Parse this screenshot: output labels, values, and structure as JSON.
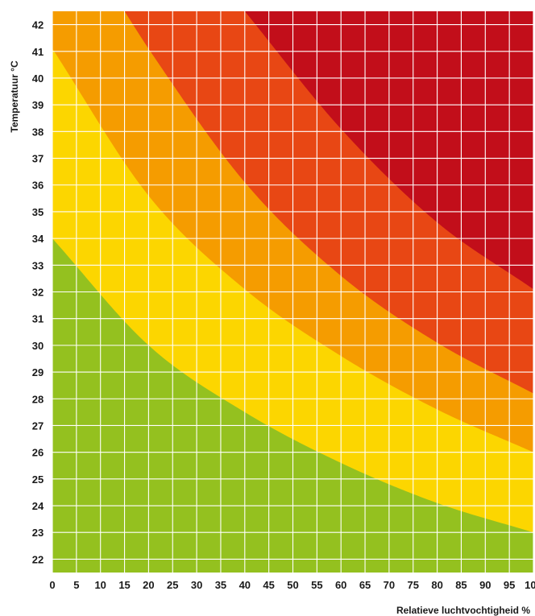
{
  "chart_data": {
    "type": "area",
    "title": "",
    "xlabel": "Relatieve luchtvochtigheid %",
    "ylabel": "Temperatuur  °C",
    "xlim": [
      0,
      100
    ],
    "ylim": [
      21.5,
      42.5
    ],
    "x_ticks": [
      0,
      5,
      10,
      15,
      20,
      25,
      30,
      35,
      40,
      45,
      50,
      55,
      60,
      65,
      70,
      75,
      80,
      85,
      90,
      95,
      100
    ],
    "y_ticks": [
      22,
      23,
      24,
      25,
      26,
      27,
      28,
      29,
      30,
      31,
      32,
      33,
      34,
      35,
      36,
      37,
      38,
      39,
      40,
      41,
      42
    ],
    "grid": true,
    "legend": "none",
    "zones": [
      {
        "color": "#94c11f",
        "upper_boundary": [
          [
            0,
            34.0
          ],
          [
            20,
            30.0
          ],
          [
            40,
            27.5
          ],
          [
            60,
            25.6
          ],
          [
            80,
            24.1
          ],
          [
            100,
            23.0
          ]
        ]
      },
      {
        "color": "#fcd600",
        "upper_boundary": [
          [
            0,
            41.1
          ],
          [
            20,
            35.6
          ],
          [
            40,
            32.1
          ],
          [
            60,
            29.6
          ],
          [
            80,
            27.6
          ],
          [
            100,
            26.0
          ]
        ]
      },
      {
        "color": "#f59c00",
        "upper_boundary": [
          [
            15,
            42.5
          ],
          [
            20,
            41.1
          ],
          [
            40,
            36.1
          ],
          [
            60,
            32.6
          ],
          [
            80,
            30.1
          ],
          [
            100,
            28.2
          ]
        ]
      },
      {
        "color": "#e84714",
        "upper_boundary": [
          [
            40,
            42.5
          ],
          [
            60,
            38.1
          ],
          [
            80,
            34.6
          ],
          [
            100,
            32.1
          ]
        ]
      },
      {
        "color": "#c20e1a",
        "upper_boundary": []
      }
    ]
  }
}
